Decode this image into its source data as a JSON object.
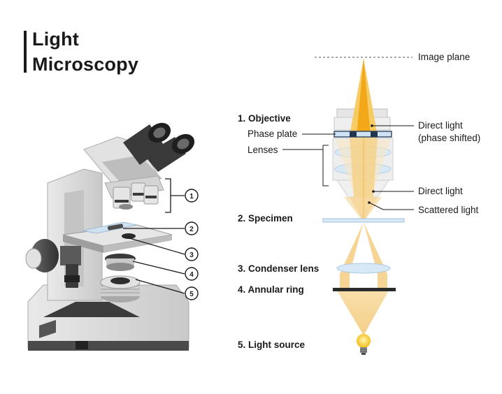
{
  "title": {
    "line1": "Light",
    "line2": "Microscopy"
  },
  "callout_numbers": [
    "1",
    "2",
    "3",
    "4",
    "5"
  ],
  "left_labels": {
    "objective": "1. Objective",
    "phase_plate": "Phase plate",
    "lenses": "Lenses",
    "specimen": "2. Specimen",
    "condenser": "3. Condenser lens",
    "annular": "4. Annular ring",
    "light_source": "5. Light source"
  },
  "right_labels": {
    "image_plane": "Image plane",
    "direct_shifted_1": "Direct light",
    "direct_shifted_2": "(phase shifted)",
    "direct_light": "Direct light",
    "scattered_light": "Scattered light"
  },
  "colors": {
    "light_beam": "#f7d9a0",
    "light_core": "#f3a81a",
    "lens_blue": "#cfe3f4",
    "text": "#1a1a1a",
    "microscope_gray": "#d8d8d8",
    "microscope_dark": "#4a4a4a"
  }
}
